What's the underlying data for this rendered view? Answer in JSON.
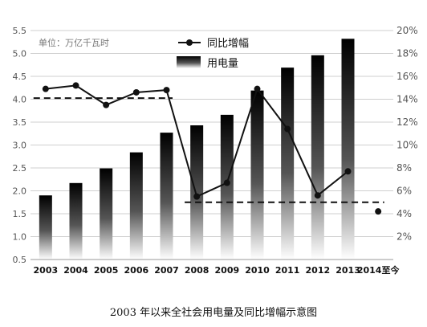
{
  "caption": "2003 年以来全社会用电量及同比增幅示意图",
  "chart_data": {
    "type": "bar",
    "categories": [
      "2003",
      "2004",
      "2005",
      "2006",
      "2007",
      "2008",
      "2009",
      "2010",
      "2011",
      "2012",
      "2013",
      "2014至今"
    ],
    "unit_note": "单位：万亿千瓦时",
    "y_left": {
      "ylim": [
        0.5,
        5.5
      ],
      "ticks": [
        "0.5",
        "1.0",
        "1.5",
        "2.0",
        "2.5",
        "3.0",
        "3.5",
        "4.0",
        "4.5",
        "5.0",
        "5.5"
      ]
    },
    "y_right": {
      "ylim": [
        0,
        20
      ],
      "ticks": [
        "2%",
        "4%",
        "6%",
        "8%",
        "10%",
        "12%",
        "14%",
        "16%",
        "18%",
        "20%"
      ]
    },
    "grid": true,
    "legend_position": "top-center",
    "series": [
      {
        "name": "用电量",
        "type": "bar",
        "axis": "left",
        "values": [
          1.9,
          2.17,
          2.49,
          2.84,
          3.27,
          3.43,
          3.66,
          4.19,
          4.69,
          4.96,
          5.32,
          null
        ]
      },
      {
        "name": "同比增幅",
        "type": "line",
        "axis": "right",
        "values": [
          14.9,
          15.2,
          13.5,
          14.6,
          14.8,
          5.5,
          6.7,
          14.9,
          11.4,
          5.6,
          7.7,
          4.2
        ]
      }
    ],
    "reference_lines": [
      {
        "style": "dashed",
        "axis": "right",
        "value": 14.1,
        "from": "2003",
        "to": "2007"
      },
      {
        "style": "dashed",
        "axis": "right",
        "value": 5.0,
        "from": "2008",
        "to": "2014至今"
      }
    ],
    "colors": {
      "bar_top": "#000000",
      "bar_bottom": "#ffffff",
      "line": "#111111",
      "grid": "#cfcfcf",
      "axis_text": "#555555"
    }
  }
}
